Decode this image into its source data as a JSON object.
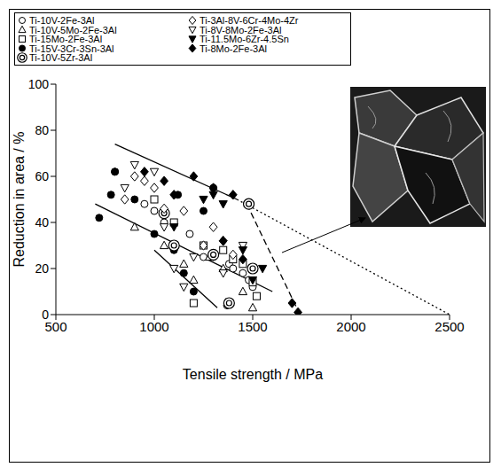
{
  "chart_data": {
    "type": "scatter",
    "x_label": "Tensile strength / MPa",
    "y_label": "Reduction in area / %",
    "xlim": [
      500,
      2500
    ],
    "xticks": [
      500,
      1000,
      1500,
      2000,
      2500
    ],
    "ylim": [
      0,
      100
    ],
    "yticks": [
      0,
      20,
      40,
      60,
      80,
      100
    ],
    "grid": false,
    "legend": "top",
    "series": [
      {
        "name": "Ti-10V-2Fe-3Al",
        "color": "#000000",
        "marker": "open_circle",
        "x": [
          800,
          950,
          1000,
          1050,
          1180,
          1250,
          1300,
          1380,
          1400,
          1450,
          1480,
          1500,
          1370
        ],
        "values": [
          62,
          48,
          45,
          40,
          35,
          25,
          25,
          22,
          20,
          18,
          15,
          12,
          4
        ]
      },
      {
        "name": "Ti-10V-5Mo-2Fe-3Al",
        "color": "#000000",
        "marker": "open_triangle",
        "x": [
          900,
          1050,
          1150,
          1200,
          1280,
          1450,
          1500,
          1350
        ],
        "values": [
          38,
          30,
          22,
          15,
          25,
          10,
          3,
          20
        ]
      },
      {
        "name": "Ti-15Mo-2Fe-3Al",
        "color": "#000000",
        "marker": "open_square",
        "x": [
          1000,
          1100,
          1200,
          1250,
          1350,
          1450,
          1500,
          1520,
          1400
        ],
        "values": [
          50,
          40,
          5,
          30,
          28,
          22,
          14,
          8,
          24
        ]
      },
      {
        "name": "Ti-15V-3Cr-3Sn-3Al",
        "color": "#000000",
        "marker": "filled_circle",
        "x": [
          720,
          780,
          800,
          900,
          1000,
          1100,
          1150,
          1200,
          1250,
          1300,
          1120
        ],
        "values": [
          42,
          52,
          62,
          50,
          35,
          28,
          18,
          10,
          45,
          55,
          52
        ]
      },
      {
        "name": "Ti-10V-5Zr-3Al",
        "color": "#000000",
        "marker": "double_circle",
        "x": [
          1050,
          1300,
          1380,
          1480,
          1500,
          1100
        ],
        "values": [
          44,
          26,
          5,
          48,
          20,
          30
        ]
      },
      {
        "name": "Ti-3Al-8V-6Cr-4Mo-4Zr",
        "color": "#000000",
        "marker": "open_diamond",
        "x": [
          850,
          900,
          950,
          1000,
          1050,
          1150,
          1250,
          1350,
          1400,
          1300
        ],
        "values": [
          50,
          60,
          58,
          55,
          46,
          45,
          30,
          32,
          26,
          38
        ]
      },
      {
        "name": "Ti-8V-8Mo-2Fe-3Al",
        "color": "#000000",
        "marker": "open_triangle_down",
        "x": [
          850,
          900,
          1000,
          1050,
          1100,
          1150,
          1200,
          1350,
          1450
        ],
        "values": [
          55,
          65,
          62,
          38,
          20,
          12,
          25,
          18,
          30
        ]
      },
      {
        "name": "Ti-11.5Mo-6Zr-4.5Sn",
        "color": "#000000",
        "marker": "filled_triangle_down",
        "x": [
          1100,
          1250,
          1300,
          1450,
          1500,
          1550,
          1350
        ],
        "values": [
          38,
          50,
          52,
          28,
          15,
          20,
          48
        ]
      },
      {
        "name": "Ti-8Mo-2Fe-3Al",
        "color": "#000000",
        "marker": "filled_diamond",
        "x": [
          950,
          1050,
          1100,
          1200,
          1300,
          1400,
          1450,
          1700,
          1730,
          1350
        ],
        "values": [
          62,
          58,
          52,
          60,
          55,
          52,
          24,
          5,
          1,
          32
        ]
      }
    ],
    "lines": [
      {
        "color": "#000000",
        "line_style": "solid",
        "x": [
          800,
          1420
        ],
        "values": [
          74,
          50
        ]
      },
      {
        "color": "#000000",
        "line_style": "solid",
        "x": [
          700,
          1600
        ],
        "values": [
          48,
          10
        ]
      },
      {
        "color": "#000000",
        "line_style": "solid",
        "x": [
          1000,
          1320
        ],
        "values": [
          28,
          3
        ]
      },
      {
        "color": "#000000",
        "line_style": "dashed",
        "x": [
          1470,
          1740
        ],
        "values": [
          48,
          0
        ]
      },
      {
        "color": "#000000",
        "line_style": "dotted",
        "x": [
          1420,
          2500
        ],
        "values": [
          50,
          0
        ]
      }
    ]
  }
}
